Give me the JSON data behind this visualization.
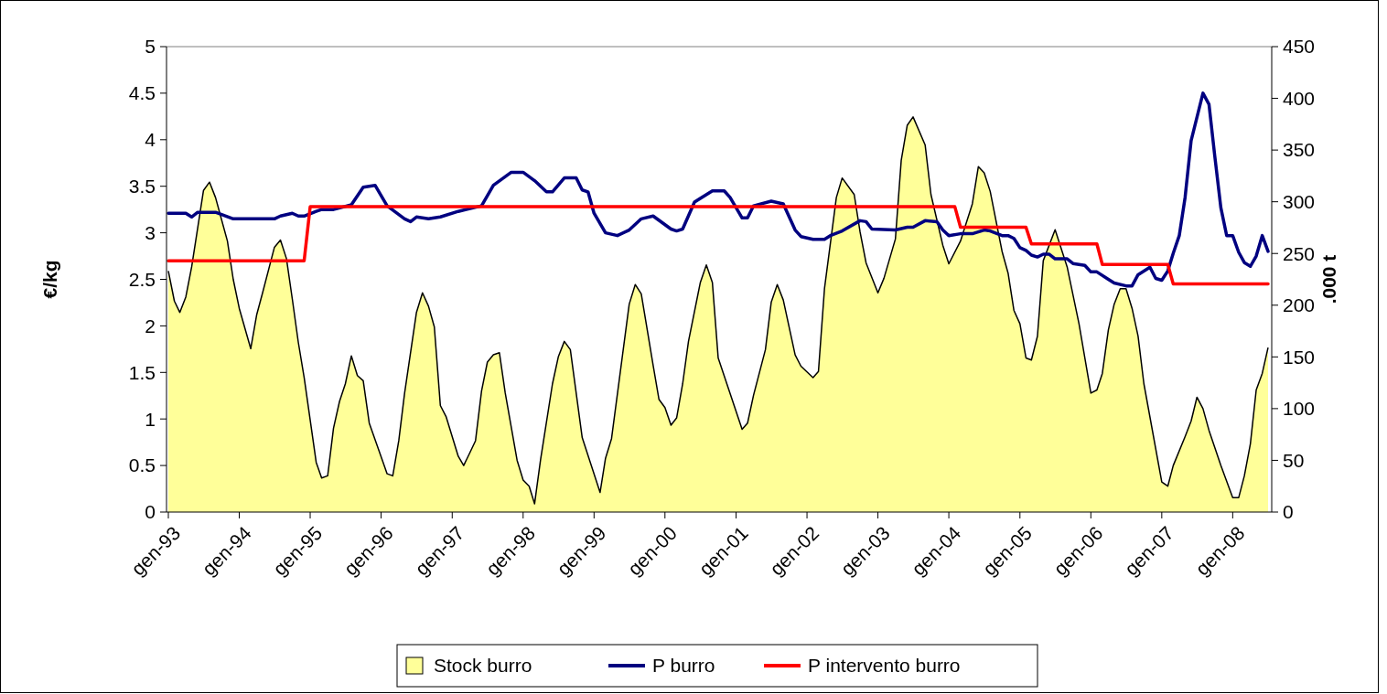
{
  "chart_data": {
    "type": "line",
    "ylabel": "€/kg",
    "y2label": ".000 t",
    "xlim": [
      "1993-01",
      "2008-07"
    ],
    "xticks": [
      {
        "value": "1993-01",
        "label": "gen-93"
      },
      {
        "value": "1994-01",
        "label": "gen-94"
      },
      {
        "value": "1995-01",
        "label": "gen-95"
      },
      {
        "value": "1996-01",
        "label": "gen-96"
      },
      {
        "value": "1997-01",
        "label": "gen-97"
      },
      {
        "value": "1998-01",
        "label": "gen-98"
      },
      {
        "value": "1999-01",
        "label": "gen-99"
      },
      {
        "value": "2000-01",
        "label": "gen-00"
      },
      {
        "value": "2001-01",
        "label": "gen-01"
      },
      {
        "value": "2002-01",
        "label": "gen-02"
      },
      {
        "value": "2003-01",
        "label": "gen-03"
      },
      {
        "value": "2004-01",
        "label": "gen-04"
      },
      {
        "value": "2005-01",
        "label": "gen-05"
      },
      {
        "value": "2006-01",
        "label": "gen-06"
      },
      {
        "value": "2007-01",
        "label": "gen-07"
      },
      {
        "value": "2008-01",
        "label": "gen-08"
      }
    ],
    "ylim": [
      0,
      5
    ],
    "yticks": [
      0,
      0.5,
      1,
      1.5,
      2,
      2.5,
      3,
      3.5,
      4,
      4.5,
      5
    ],
    "y2lim": [
      0,
      450
    ],
    "y2ticks": [
      0,
      50,
      100,
      150,
      200,
      250,
      300,
      350,
      400,
      450
    ],
    "grid": false,
    "legend": "bottom",
    "series": [
      {
        "name": "Stock burro",
        "type": "area",
        "axis": "y2",
        "color": "#ffff99",
        "x": [
          "1993-01",
          "1993-02",
          "1993-03",
          "1993-04",
          "1993-05",
          "1993-07",
          "1993-08",
          "1993-09",
          "1993-11",
          "1993-12",
          "1994-01",
          "1994-03",
          "1994-04",
          "1994-05",
          "1994-07",
          "1994-08",
          "1994-09",
          "1994-10",
          "1994-11",
          "1994-12",
          "1995-02",
          "1995-03",
          "1995-04",
          "1995-05",
          "1995-06",
          "1995-07",
          "1995-08",
          "1995-09",
          "1995-10",
          "1995-11",
          "1996-02",
          "1996-03",
          "1996-04",
          "1996-05",
          "1996-07",
          "1996-08",
          "1996-09",
          "1996-10",
          "1996-11",
          "1996-12",
          "1997-02",
          "1997-03",
          "1997-04",
          "1997-05",
          "1997-06",
          "1997-07",
          "1997-08",
          "1997-09",
          "1997-10",
          "1997-12",
          "1998-01",
          "1998-02",
          "1998-03",
          "1998-04",
          "1998-06",
          "1998-07",
          "1998-08",
          "1998-09",
          "1998-11",
          "1999-02",
          "1999-03",
          "1999-04",
          "1999-07",
          "1999-08",
          "1999-09",
          "1999-11",
          "1999-12",
          "2000-01",
          "2000-02",
          "2000-03",
          "2000-04",
          "2000-05",
          "2000-07",
          "2000-08",
          "2000-09",
          "2000-10",
          "2001-02",
          "2001-03",
          "2001-04",
          "2001-06",
          "2001-07",
          "2001-08",
          "2001-09",
          "2001-11",
          "2001-12",
          "2002-02",
          "2002-03",
          "2002-04",
          "2002-06",
          "2002-07",
          "2002-09",
          "2002-10",
          "2002-11",
          "2003-01",
          "2003-02",
          "2003-04",
          "2003-05",
          "2003-06",
          "2003-07",
          "2003-09",
          "2003-10",
          "2003-12",
          "2004-01",
          "2004-03",
          "2004-05",
          "2004-06",
          "2004-07",
          "2004-08",
          "2004-10",
          "2004-11",
          "2004-12",
          "2005-01",
          "2005-02",
          "2005-03",
          "2005-04",
          "2005-05",
          "2005-07",
          "2005-09",
          "2005-11",
          "2006-01",
          "2006-02",
          "2006-03",
          "2006-04",
          "2006-05",
          "2006-06",
          "2006-07",
          "2006-08",
          "2006-09",
          "2006-10",
          "2007-01",
          "2007-02",
          "2007-03",
          "2007-05",
          "2007-06",
          "2007-07",
          "2007-08",
          "2007-09",
          "2007-11",
          "2008-01",
          "2008-02",
          "2008-03",
          "2008-04",
          "2008-05",
          "2008-06",
          "2008-07"
        ],
        "values": [
          233,
          204,
          193,
          208,
          237,
          311,
          319,
          304,
          262,
          225,
          197,
          158,
          191,
          212,
          256,
          263,
          245,
          206,
          164,
          130,
          48,
          33,
          35,
          81,
          107,
          124,
          151,
          132,
          127,
          86,
          37,
          35,
          69,
          115,
          193,
          212,
          199,
          179,
          103,
          92,
          54,
          45,
          57,
          69,
          117,
          145,
          152,
          154,
          115,
          50,
          31,
          25,
          8,
          51,
          124,
          150,
          165,
          157,
          72,
          19,
          52,
          71,
          201,
          220,
          211,
          142,
          109,
          101,
          84,
          91,
          124,
          165,
          222,
          239,
          222,
          149,
          80,
          86,
          113,
          157,
          203,
          220,
          205,
          152,
          141,
          130,
          136,
          216,
          304,
          323,
          307,
          271,
          241,
          212,
          226,
          264,
          340,
          374,
          382,
          355,
          307,
          258,
          240,
          262,
          298,
          334,
          328,
          310,
          252,
          231,
          195,
          182,
          149,
          147,
          170,
          243,
          273,
          237,
          182,
          115,
          118,
          134,
          176,
          201,
          216,
          216,
          197,
          170,
          124,
          29,
          25,
          45,
          73,
          88,
          111,
          100,
          79,
          45,
          14,
          14,
          35,
          66,
          118,
          134,
          159
        ]
      },
      {
        "name": "P burro",
        "color": "#000080",
        "x": [
          "1993-01",
          "1993-04",
          "1993-05",
          "1993-06",
          "1993-09",
          "1993-12",
          "1994-07",
          "1994-08",
          "1994-10",
          "1994-11",
          "1994-12",
          "1995-02",
          "1995-03",
          "1995-05",
          "1995-08",
          "1995-10",
          "1995-12",
          "1996-02",
          "1996-05",
          "1996-06",
          "1996-07",
          "1996-09",
          "1996-11",
          "1997-02",
          "1997-06",
          "1997-08",
          "1997-11",
          "1998-01",
          "1998-03",
          "1998-05",
          "1998-06",
          "1998-08",
          "1998-10",
          "1998-11",
          "1998-12",
          "1999-01",
          "1999-03",
          "1999-05",
          "1999-07",
          "1999-09",
          "1999-11",
          "2000-02",
          "2000-03",
          "2000-04",
          "2000-06",
          "2000-09",
          "2000-11",
          "2000-12",
          "2001-02",
          "2001-03",
          "2001-04",
          "2001-07",
          "2001-09",
          "2001-11",
          "2001-12",
          "2002-02",
          "2002-04",
          "2002-05",
          "2002-07",
          "2002-10",
          "2002-11",
          "2002-12",
          "2003-04",
          "2003-06",
          "2003-07",
          "2003-09",
          "2003-11",
          "2003-12",
          "2004-01",
          "2004-03",
          "2004-05",
          "2004-07",
          "2004-08",
          "2004-10",
          "2004-11",
          "2004-12",
          "2005-01",
          "2005-02",
          "2005-03",
          "2005-04",
          "2005-05",
          "2005-06",
          "2005-07",
          "2005-09",
          "2005-10",
          "2005-12",
          "2006-01",
          "2006-02",
          "2006-04",
          "2006-05",
          "2006-07",
          "2006-08",
          "2006-09",
          "2006-11",
          "2006-12",
          "2007-01",
          "2007-02",
          "2007-03",
          "2007-04",
          "2007-05",
          "2007-06",
          "2007-08",
          "2007-09",
          "2007-10",
          "2007-11",
          "2007-12",
          "2008-01",
          "2008-02",
          "2008-03",
          "2008-04",
          "2008-05",
          "2008-06",
          "2008-07"
        ],
        "values": [
          3.21,
          3.21,
          3.17,
          3.22,
          3.22,
          3.15,
          3.15,
          3.18,
          3.21,
          3.18,
          3.18,
          3.23,
          3.25,
          3.25,
          3.3,
          3.49,
          3.51,
          3.29,
          3.15,
          3.12,
          3.17,
          3.15,
          3.17,
          3.23,
          3.29,
          3.51,
          3.65,
          3.65,
          3.56,
          3.44,
          3.44,
          3.59,
          3.59,
          3.46,
          3.44,
          3.21,
          3.0,
          2.97,
          3.03,
          3.15,
          3.18,
          3.04,
          3.02,
          3.04,
          3.33,
          3.45,
          3.45,
          3.38,
          3.16,
          3.16,
          3.29,
          3.34,
          3.31,
          3.03,
          2.96,
          2.93,
          2.93,
          2.97,
          3.02,
          3.13,
          3.12,
          3.04,
          3.03,
          3.06,
          3.06,
          3.13,
          3.12,
          3.03,
          2.97,
          2.99,
          2.99,
          3.03,
          3.02,
          2.97,
          2.97,
          2.94,
          2.84,
          2.81,
          2.76,
          2.74,
          2.77,
          2.77,
          2.72,
          2.72,
          2.67,
          2.65,
          2.58,
          2.58,
          2.5,
          2.46,
          2.43,
          2.43,
          2.55,
          2.63,
          2.51,
          2.49,
          2.59,
          2.78,
          2.97,
          3.38,
          3.99,
          4.5,
          4.38,
          3.82,
          3.27,
          2.97,
          2.97,
          2.79,
          2.68,
          2.64,
          2.75,
          2.97,
          2.8
        ]
      },
      {
        "name": "P intervento burro",
        "color": "#ff0000",
        "x": [
          "1993-01",
          "1994-12",
          "1995-01",
          "2004-02",
          "2004-03",
          "2005-02",
          "2005-03",
          "2006-02",
          "2006-03",
          "2007-02",
          "2007-03",
          "2008-07"
        ],
        "values": [
          2.7,
          2.7,
          3.28,
          3.28,
          3.06,
          3.06,
          2.88,
          2.88,
          2.66,
          2.66,
          2.45,
          2.45
        ]
      }
    ]
  }
}
